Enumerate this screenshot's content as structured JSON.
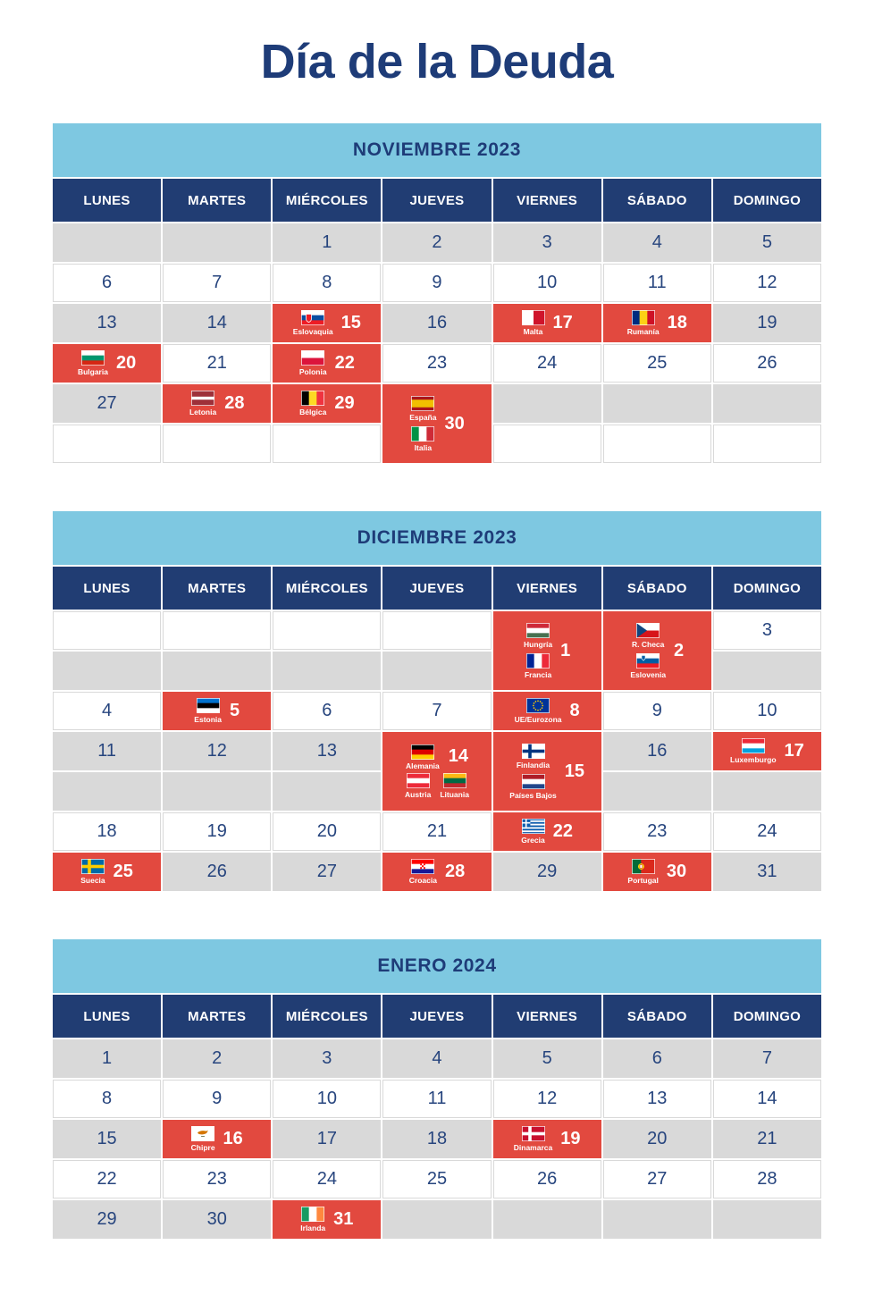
{
  "page_title": "Día de la Deuda",
  "colors": {
    "navy": "#1e3c78",
    "header_navy": "#213d73",
    "light_blue": "#7ec8e1",
    "highlight_red": "#e2493f",
    "row_gray": "#d9d9d9"
  },
  "day_headers": [
    "LUNES",
    "MARTES",
    "MIÉRCOLES",
    "JUEVES",
    "VIERNES",
    "SÁBADO",
    "DOMINGO"
  ],
  "months": [
    {
      "title": "NOVIEMBRE 2023",
      "rows": [
        {
          "bg": "gray",
          "cells": [
            {},
            {},
            {
              "day": "1"
            },
            {
              "day": "2"
            },
            {
              "day": "3"
            },
            {
              "day": "4"
            },
            {
              "day": "5"
            }
          ]
        },
        {
          "bg": "white",
          "cells": [
            {
              "day": "6"
            },
            {
              "day": "7"
            },
            {
              "day": "8"
            },
            {
              "day": "9"
            },
            {
              "day": "10"
            },
            {
              "day": "11"
            },
            {
              "day": "12"
            }
          ]
        },
        {
          "bg": "gray",
          "cells": [
            {
              "day": "13"
            },
            {
              "day": "14"
            },
            {
              "day": "15",
              "highlight": true,
              "countries": [
                {
                  "name": "Eslovaquia",
                  "flag": "slovakia"
                }
              ]
            },
            {
              "day": "16"
            },
            {
              "day": "17",
              "highlight": true,
              "countries": [
                {
                  "name": "Malta",
                  "flag": "malta"
                }
              ]
            },
            {
              "day": "18",
              "highlight": true,
              "countries": [
                {
                  "name": "Rumanía",
                  "flag": "romania"
                }
              ]
            },
            {
              "day": "19"
            }
          ]
        },
        {
          "bg": "white",
          "cells": [
            {
              "day": "20",
              "highlight": true,
              "countries": [
                {
                  "name": "Bulgaria",
                  "flag": "bulgaria"
                }
              ]
            },
            {
              "day": "21"
            },
            {
              "day": "22",
              "highlight": true,
              "countries": [
                {
                  "name": "Polonia",
                  "flag": "poland"
                }
              ]
            },
            {
              "day": "23"
            },
            {
              "day": "24"
            },
            {
              "day": "25"
            },
            {
              "day": "26"
            }
          ]
        },
        {
          "bg": "gray",
          "cells": [
            {
              "day": "27"
            },
            {
              "day": "28",
              "highlight": true,
              "countries": [
                {
                  "name": "Letonia",
                  "flag": "latvia"
                }
              ]
            },
            {
              "day": "29",
              "highlight": true,
              "countries": [
                {
                  "name": "Bélgica",
                  "flag": "belgium"
                }
              ]
            },
            {
              "day": "30",
              "highlight": true,
              "rowspan": 2,
              "countries": [
                {
                  "name": "España",
                  "flag": "spain"
                },
                {
                  "name": "Italia",
                  "flag": "italy"
                }
              ]
            },
            {},
            {},
            {}
          ]
        },
        {
          "bg": "white",
          "cells": [
            {},
            {},
            {},
            {
              "skip": true
            },
            {},
            {},
            {}
          ]
        }
      ]
    },
    {
      "title": "DICIEMBRE 2023",
      "rows": [
        {
          "bg": "white",
          "cells": [
            {},
            {},
            {},
            {},
            {
              "day": "1",
              "highlight": true,
              "rowspan": 2,
              "countries": [
                {
                  "name": "Hungría",
                  "flag": "hungary"
                },
                {
                  "name": "Francia",
                  "flag": "france"
                }
              ]
            },
            {
              "day": "2",
              "highlight": true,
              "rowspan": 2,
              "countries": [
                {
                  "name": "R. Checa",
                  "flag": "czechia"
                },
                {
                  "name": "Eslovenia",
                  "flag": "slovenia"
                }
              ]
            },
            {
              "day": "3"
            }
          ]
        },
        {
          "bg": "gray",
          "cells": [
            {},
            {},
            {},
            {},
            {
              "skip": true
            },
            {
              "skip": true
            },
            {}
          ]
        },
        {
          "bg": "white",
          "cells": [
            {
              "day": "4"
            },
            {
              "day": "5",
              "highlight": true,
              "countries": [
                {
                  "name": "Estonia",
                  "flag": "estonia"
                }
              ]
            },
            {
              "day": "6"
            },
            {
              "day": "7"
            },
            {
              "day": "8",
              "highlight": true,
              "countries": [
                {
                  "name": "UE/Eurozona",
                  "flag": "eu"
                }
              ]
            },
            {
              "day": "9"
            },
            {
              "day": "10"
            }
          ]
        },
        {
          "bg": "gray",
          "cells": [
            {
              "day": "11"
            },
            {
              "day": "12"
            },
            {
              "day": "13"
            },
            {
              "day": "14",
              "highlight": true,
              "rowspan": 2,
              "countries": [
                {
                  "name": "Alemania",
                  "flag": "germany"
                }
              ],
              "extra_row": [
                {
                  "name": "Austria",
                  "flag": "austria"
                },
                {
                  "name": "Lituania",
                  "flag": "lithuania"
                }
              ]
            },
            {
              "day": "15",
              "highlight": true,
              "rowspan": 2,
              "countries": [
                {
                  "name": "Finlandia",
                  "flag": "finland"
                },
                {
                  "name": "Países Bajos",
                  "flag": "netherlands"
                }
              ]
            },
            {
              "day": "16"
            },
            {
              "day": "17",
              "highlight": true,
              "countries": [
                {
                  "name": "Luxemburgo",
                  "flag": "luxembourg"
                }
              ]
            }
          ]
        },
        {
          "bg": "gray",
          "cells": [
            {},
            {},
            {},
            {
              "skip": true
            },
            {
              "skip": true
            },
            {},
            {}
          ]
        },
        {
          "bg": "white",
          "cells": [
            {
              "day": "18"
            },
            {
              "day": "19"
            },
            {
              "day": "20"
            },
            {
              "day": "21"
            },
            {
              "day": "22",
              "highlight": true,
              "countries": [
                {
                  "name": "Grecia",
                  "flag": "greece"
                }
              ]
            },
            {
              "day": "23"
            },
            {
              "day": "24"
            }
          ]
        },
        {
          "bg": "gray",
          "cells": [
            {
              "day": "25",
              "highlight": true,
              "countries": [
                {
                  "name": "Suecia",
                  "flag": "sweden"
                }
              ]
            },
            {
              "day": "26"
            },
            {
              "day": "27"
            },
            {
              "day": "28",
              "highlight": true,
              "countries": [
                {
                  "name": "Croacia",
                  "flag": "croatia"
                }
              ]
            },
            {
              "day": "29"
            },
            {
              "day": "30",
              "highlight": true,
              "countries": [
                {
                  "name": "Portugal",
                  "flag": "portugal"
                }
              ]
            },
            {
              "day": "31"
            }
          ]
        }
      ]
    },
    {
      "title": "ENERO 2024",
      "rows": [
        {
          "bg": "gray",
          "cells": [
            {
              "day": "1"
            },
            {
              "day": "2"
            },
            {
              "day": "3"
            },
            {
              "day": "4"
            },
            {
              "day": "5"
            },
            {
              "day": "6"
            },
            {
              "day": "7"
            }
          ]
        },
        {
          "bg": "white",
          "cells": [
            {
              "day": "8"
            },
            {
              "day": "9"
            },
            {
              "day": "10"
            },
            {
              "day": "11"
            },
            {
              "day": "12"
            },
            {
              "day": "13"
            },
            {
              "day": "14"
            }
          ]
        },
        {
          "bg": "gray",
          "cells": [
            {
              "day": "15"
            },
            {
              "day": "16",
              "highlight": true,
              "countries": [
                {
                  "name": "Chipre",
                  "flag": "cyprus"
                }
              ]
            },
            {
              "day": "17"
            },
            {
              "day": "18"
            },
            {
              "day": "19",
              "highlight": true,
              "countries": [
                {
                  "name": "Dinamarca",
                  "flag": "denmark"
                }
              ]
            },
            {
              "day": "20"
            },
            {
              "day": "21"
            }
          ]
        },
        {
          "bg": "white",
          "cells": [
            {
              "day": "22"
            },
            {
              "day": "23"
            },
            {
              "day": "24"
            },
            {
              "day": "25"
            },
            {
              "day": "26"
            },
            {
              "day": "27"
            },
            {
              "day": "28"
            }
          ]
        },
        {
          "bg": "gray",
          "cells": [
            {
              "day": "29"
            },
            {
              "day": "30"
            },
            {
              "day": "31",
              "highlight": true,
              "countries": [
                {
                  "name": "Irlanda",
                  "flag": "ireland"
                }
              ]
            },
            {},
            {},
            {},
            {}
          ]
        }
      ]
    }
  ]
}
